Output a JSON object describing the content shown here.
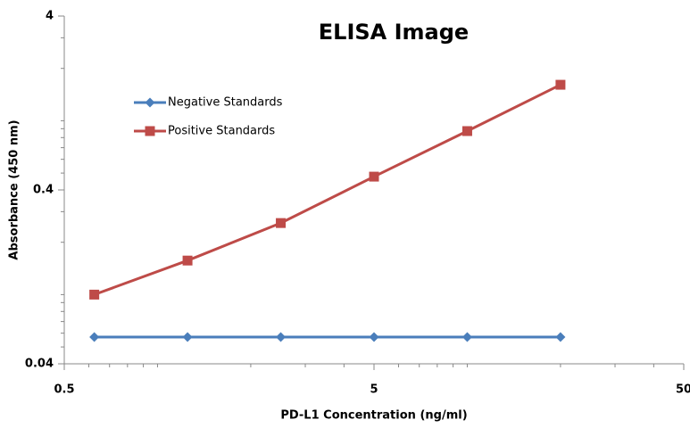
{
  "chart_data": {
    "type": "line",
    "title": "ELISA Image",
    "x_label": "PD-L1 Concentration  (ng/ml)",
    "y_label": "Absorbance (450 nm)",
    "x": [
      0.625,
      1.25,
      2.5,
      5,
      10,
      20
    ],
    "series": [
      {
        "name": "Negative Standards",
        "color": "#4a7ebb",
        "marker": "diamond",
        "values": [
          0.057,
          0.057,
          0.057,
          0.057,
          0.057,
          0.057
        ]
      },
      {
        "name": "Positive Standards",
        "color": "#be4b48",
        "marker": "square",
        "values": [
          0.1,
          0.157,
          0.258,
          0.477,
          0.872,
          1.61
        ]
      }
    ],
    "xlim": [
      0.5,
      50
    ],
    "xticks": [
      0.5,
      5,
      50
    ],
    "x_log": true,
    "ylim": [
      0.04,
      4
    ],
    "yticks": [
      0.04,
      0.4,
      4
    ],
    "y_log": true,
    "legend": "upper-left"
  }
}
